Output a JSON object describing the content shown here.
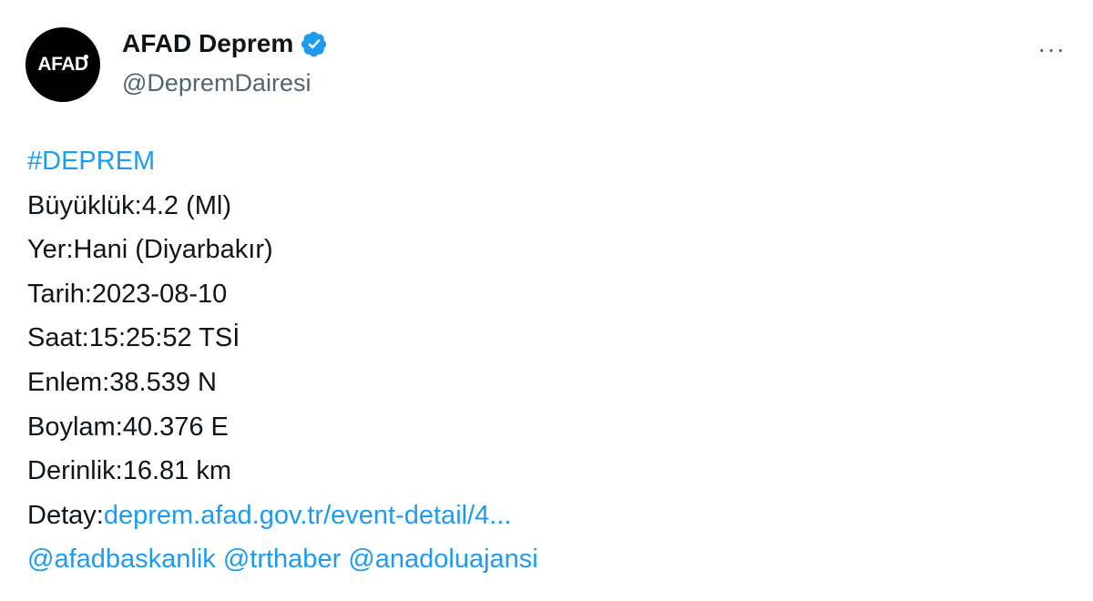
{
  "author": {
    "avatar_text": "AFAD",
    "name": "AFAD Deprem",
    "handle": "@DepremDairesi",
    "verified": true,
    "accent": "#1d9bf0"
  },
  "more_label": "···",
  "tweet": {
    "hashtag": "#DEPREM",
    "lines": [
      "Büyüklük:4.2 (Ml)",
      "Yer:Hani (Diyarbakır)",
      "Tarih:2023-08-10",
      "Saat:15:25:52 TSİ",
      "Enlem:38.539 N",
      "Boylam:40.376 E",
      "Derinlik:16.81 km"
    ],
    "detail_label": "Detay:",
    "detail_link": "deprem.afad.gov.tr/event-detail/4...",
    "mentions": [
      "@afadbaskanlik",
      "@trthaber",
      "@anadoluajansi"
    ]
  }
}
